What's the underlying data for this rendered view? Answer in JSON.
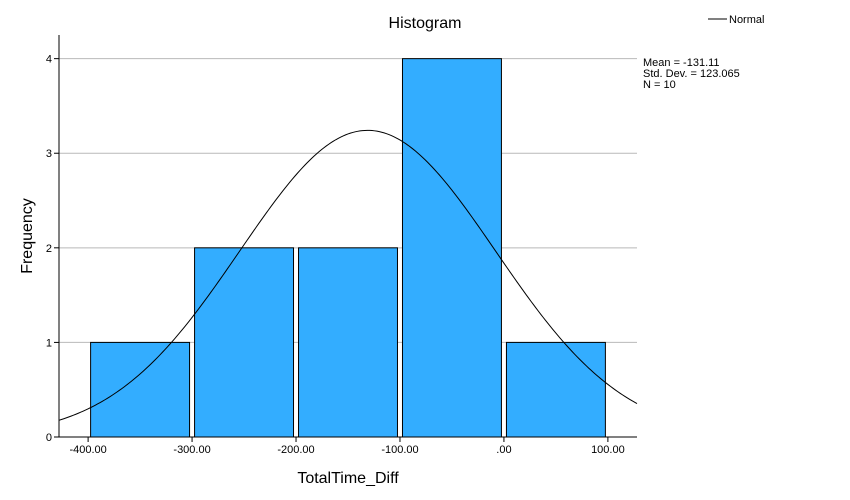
{
  "chart_data": {
    "type": "bar",
    "title": "Histogram",
    "xlabel": "TotalTime_Diff",
    "ylabel": "Frequency",
    "bins": [
      {
        "from": -400,
        "to": -300,
        "count": 1
      },
      {
        "from": -300,
        "to": -200,
        "count": 2
      },
      {
        "from": -200,
        "to": -100,
        "count": 2
      },
      {
        "from": -100,
        "to": 0,
        "count": 4
      },
      {
        "from": 0,
        "to": 100,
        "count": 1
      }
    ],
    "xlim": [
      -428,
      128
    ],
    "ylim": [
      0,
      4.25
    ],
    "x_ticks": [
      -400,
      -300,
      -200,
      -100,
      0,
      100
    ],
    "x_tick_labels": [
      "-400.00",
      "-300.00",
      "-200.00",
      "-100.00",
      ".00",
      "100.00"
    ],
    "y_ticks": [
      0,
      1,
      2,
      3,
      4
    ],
    "y_tick_labels": [
      "0",
      "1",
      "2",
      "3",
      "4"
    ],
    "grid": "horizontal",
    "normal_curve": {
      "mean": -131.11,
      "sd": 123.065,
      "n": 10,
      "bin_width": 100
    },
    "stats": [
      "Mean = -131.11",
      "Std. Dev. = 123.065",
      "N = 10"
    ],
    "legend": {
      "entries": [
        "Normal"
      ],
      "placement": "top-right"
    },
    "colors": {
      "bar_fill": "#33adff",
      "bar_stroke": "#000000",
      "grid": "#b9b9b9",
      "curve": "#000000"
    }
  }
}
